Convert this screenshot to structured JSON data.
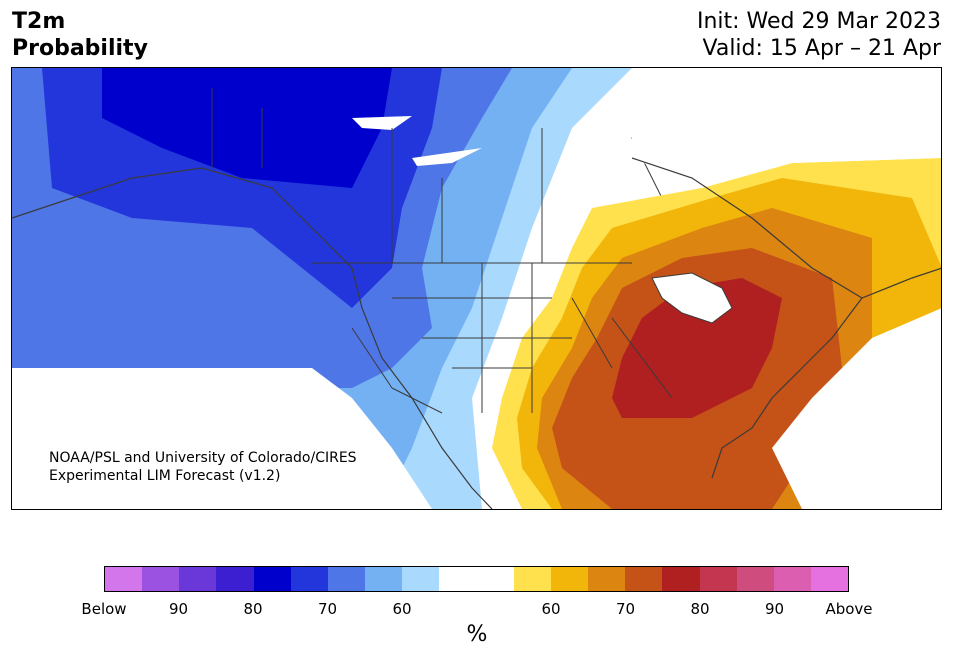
{
  "title": {
    "line1": "T2m",
    "line2": "Probability",
    "init": "Init: Wed 29 Mar 2023",
    "valid": "Valid: 15 Apr – 21 Apr"
  },
  "credit": {
    "line1": "NOAA/PSL and University of Colorado/CIRES",
    "line2": "Experimental LIM Forecast (v1.2)"
  },
  "colorbar": {
    "unit": "%",
    "colors": [
      "#d375eb",
      "#9c52e0",
      "#6a38d8",
      "#3b1fd0",
      "#0000cc",
      "#2236dc",
      "#4f76e6",
      "#74b1f3",
      "#a9dafe",
      "#ffffff",
      "#ffffff",
      "#ffe14d",
      "#f2b50a",
      "#dc8510",
      "#c55318",
      "#b02020",
      "#c43550",
      "#cf4d7e",
      "#dc5eb0",
      "#e570e0"
    ],
    "tick_labels": [
      "Below",
      "90",
      "80",
      "70",
      "60",
      "60",
      "70",
      "80",
      "90",
      "Above"
    ]
  },
  "legend": {
    "below": "Below",
    "above": "Above"
  }
}
